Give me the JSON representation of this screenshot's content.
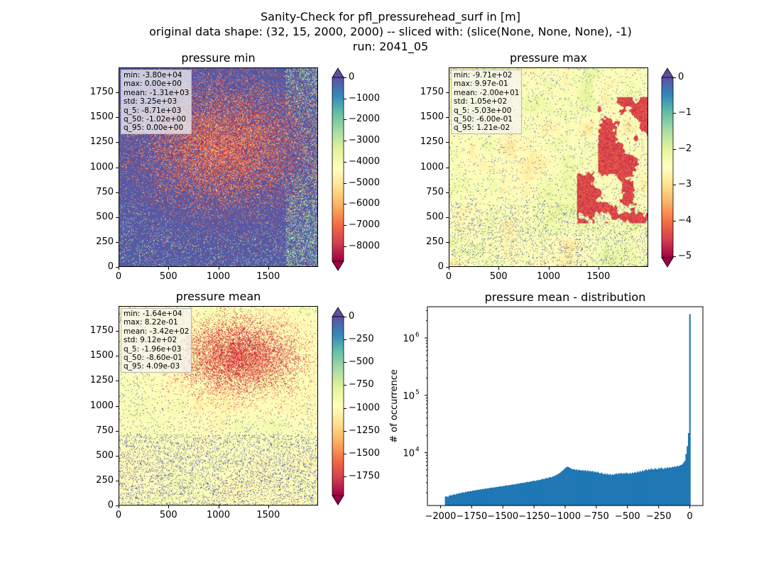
{
  "suptitle": {
    "line1": "Sanity-Check for pfl_pressurehead_surf in [m]",
    "line2": "original data shape: (32, 15, 2000, 2000) -- sliced with: (slice(None, None, None), -1)",
    "line3": "run: 2041_05"
  },
  "panels": {
    "min": {
      "title": "pressure min",
      "stats": [
        "min: -3.80e+04",
        "max: 0.00e+00",
        "mean: -1.31e+03",
        "std: 3.25e+03",
        "q_5: -8.71e+03",
        "q_50: -1.02e+00",
        "q_95: 0.00e+00"
      ],
      "xticks": [
        "0",
        "500",
        "1000",
        "1500"
      ],
      "yticks": [
        "0",
        "250",
        "500",
        "750",
        "1000",
        "1250",
        "1500",
        "1750"
      ],
      "cbar_ticks": [
        "0",
        "−1000",
        "−2000",
        "−3000",
        "−4000",
        "−5000",
        "−6000",
        "−7000",
        "−8000"
      ],
      "cbar_range": [
        -8710,
        0
      ],
      "cmap": "Spectral"
    },
    "max": {
      "title": "pressure max",
      "stats": [
        "min: -9.71e+02",
        "max: 9.97e-01",
        "mean: -2.00e+01",
        "std: 1.05e+02",
        "q_5: -5.03e+00",
        "q_50: -6.00e-01",
        "q_95: 1.21e-02"
      ],
      "xticks": [
        "0",
        "500",
        "1000",
        "1500"
      ],
      "yticks": [
        "0",
        "250",
        "500",
        "750",
        "1000",
        "1250",
        "1500",
        "1750"
      ],
      "cbar_ticks": [
        "0",
        "−1",
        "−2",
        "−3",
        "−4",
        "−5"
      ],
      "cbar_range": [
        -5.03,
        0
      ],
      "cmap": "Spectral"
    },
    "mean": {
      "title": "pressure mean",
      "stats": [
        "min: -1.64e+04",
        "max: 8.22e-01",
        "mean: -3.42e+02",
        "std: 9.12e+02",
        "q_5: -1.96e+03",
        "q_50: -8.60e-01",
        "q_95: 4.09e-03"
      ],
      "xticks": [
        "0",
        "500",
        "1000",
        "1500"
      ],
      "yticks": [
        "0",
        "250",
        "500",
        "750",
        "1000",
        "1250",
        "1500",
        "1750"
      ],
      "cbar_ticks": [
        "0",
        "−250",
        "−500",
        "−750",
        "−1000",
        "−1250",
        "−1500",
        "−1750"
      ],
      "cbar_range": [
        -1960,
        0
      ],
      "cmap": "Spectral"
    }
  },
  "colors": {
    "bar": "#1f77b4",
    "cmap_low": "#9e0142",
    "cmap_mid": "#ffffbf",
    "cmap_high": "#5e4fa2"
  },
  "chart_data": [
    {
      "type": "heatmap",
      "title": "pressure min",
      "xlim": [
        0,
        2000
      ],
      "ylim": [
        0,
        2000
      ],
      "xticks": [
        0,
        500,
        1000,
        1500
      ],
      "yticks": [
        0,
        250,
        500,
        750,
        1000,
        1250,
        1500,
        1750
      ],
      "colorbar": {
        "min": -8710,
        "max": 0,
        "ticks": [
          0,
          -1000,
          -2000,
          -3000,
          -4000,
          -5000,
          -6000,
          -7000,
          -8000
        ],
        "extend": "both",
        "cmap": "Spectral"
      }
    },
    {
      "type": "heatmap",
      "title": "pressure max",
      "xlim": [
        0,
        2000
      ],
      "ylim": [
        0,
        2000
      ],
      "xticks": [
        0,
        500,
        1000,
        1500
      ],
      "yticks": [
        0,
        250,
        500,
        750,
        1000,
        1250,
        1500,
        1750
      ],
      "colorbar": {
        "min": -5.03,
        "max": 0,
        "ticks": [
          0,
          -1,
          -2,
          -3,
          -4,
          -5
        ],
        "extend": "both",
        "cmap": "Spectral"
      }
    },
    {
      "type": "heatmap",
      "title": "pressure mean",
      "xlim": [
        0,
        2000
      ],
      "ylim": [
        0,
        2000
      ],
      "xticks": [
        0,
        500,
        1000,
        1500
      ],
      "yticks": [
        0,
        250,
        500,
        750,
        1000,
        1250,
        1500,
        1750
      ],
      "colorbar": {
        "min": -1960,
        "max": 0,
        "ticks": [
          0,
          -250,
          -500,
          -750,
          -1000,
          -1250,
          -1500,
          -1750
        ],
        "extend": "both",
        "cmap": "Spectral"
      }
    },
    {
      "type": "bar",
      "title": "pressure mean - distribution",
      "xlabel": "",
      "ylabel": "# of occurrence",
      "yscale": "log",
      "xlim": [
        -2105,
        105
      ],
      "ylim": [
        1200,
        3500000
      ],
      "xticks": [
        -2000,
        -1750,
        -1500,
        -1250,
        -1000,
        -750,
        -500,
        -250,
        0
      ],
      "xtick_labels": [
        "−2000",
        "−1750",
        "−1500",
        "−1250",
        "−1000",
        "−750",
        "−500",
        "−250",
        "0"
      ],
      "yticks": [
        10000,
        100000,
        1000000
      ],
      "ytick_labels": [
        "10",
        "10",
        "10"
      ],
      "ytick_exponents": [
        "4",
        "5",
        "6"
      ],
      "bin_width": 10,
      "bins": [
        {
          "x": -1960,
          "y": 1720
        },
        {
          "x": -1950,
          "y": 1730
        },
        {
          "x": -1940,
          "y": 1690
        },
        {
          "x": -1930,
          "y": 1780
        },
        {
          "x": -1920,
          "y": 1820
        },
        {
          "x": -1910,
          "y": 1790
        },
        {
          "x": -1900,
          "y": 1860
        },
        {
          "x": -1890,
          "y": 1880
        },
        {
          "x": -1880,
          "y": 1850
        },
        {
          "x": -1870,
          "y": 1930
        },
        {
          "x": -1860,
          "y": 1920
        },
        {
          "x": -1850,
          "y": 1980
        },
        {
          "x": -1840,
          "y": 1960
        },
        {
          "x": -1830,
          "y": 2010
        },
        {
          "x": -1820,
          "y": 2040
        },
        {
          "x": -1810,
          "y": 2000
        },
        {
          "x": -1800,
          "y": 2080
        },
        {
          "x": -1790,
          "y": 2060
        },
        {
          "x": -1780,
          "y": 2120
        },
        {
          "x": -1770,
          "y": 2110
        },
        {
          "x": -1760,
          "y": 2150
        },
        {
          "x": -1750,
          "y": 2130
        },
        {
          "x": -1740,
          "y": 2190
        },
        {
          "x": -1730,
          "y": 2180
        },
        {
          "x": -1720,
          "y": 2230
        },
        {
          "x": -1710,
          "y": 2210
        },
        {
          "x": -1700,
          "y": 2270
        },
        {
          "x": -1690,
          "y": 2250
        },
        {
          "x": -1680,
          "y": 2300
        },
        {
          "x": -1670,
          "y": 2280
        },
        {
          "x": -1660,
          "y": 2340
        },
        {
          "x": -1650,
          "y": 2320
        },
        {
          "x": -1640,
          "y": 2380
        },
        {
          "x": -1630,
          "y": 2360
        },
        {
          "x": -1620,
          "y": 2410
        },
        {
          "x": -1610,
          "y": 2390
        },
        {
          "x": -1600,
          "y": 2450
        },
        {
          "x": -1590,
          "y": 2470
        },
        {
          "x": -1580,
          "y": 2440
        },
        {
          "x": -1570,
          "y": 2500
        },
        {
          "x": -1560,
          "y": 2480
        },
        {
          "x": -1550,
          "y": 2540
        },
        {
          "x": -1540,
          "y": 2520
        },
        {
          "x": -1530,
          "y": 2580
        },
        {
          "x": -1520,
          "y": 2600
        },
        {
          "x": -1510,
          "y": 2570
        },
        {
          "x": -1500,
          "y": 2640
        },
        {
          "x": -1490,
          "y": 2620
        },
        {
          "x": -1480,
          "y": 2680
        },
        {
          "x": -1470,
          "y": 2700
        },
        {
          "x": -1460,
          "y": 2660
        },
        {
          "x": -1450,
          "y": 2740
        },
        {
          "x": -1440,
          "y": 2720
        },
        {
          "x": -1430,
          "y": 2780
        },
        {
          "x": -1420,
          "y": 2800
        },
        {
          "x": -1410,
          "y": 2760
        },
        {
          "x": -1400,
          "y": 2850
        },
        {
          "x": -1390,
          "y": 2830
        },
        {
          "x": -1380,
          "y": 2900
        },
        {
          "x": -1370,
          "y": 2880
        },
        {
          "x": -1360,
          "y": 2950
        },
        {
          "x": -1350,
          "y": 2980
        },
        {
          "x": -1340,
          "y": 2940
        },
        {
          "x": -1330,
          "y": 3020
        },
        {
          "x": -1320,
          "y": 3000
        },
        {
          "x": -1310,
          "y": 3080
        },
        {
          "x": -1300,
          "y": 3110
        },
        {
          "x": -1290,
          "y": 3070
        },
        {
          "x": -1280,
          "y": 3160
        },
        {
          "x": -1270,
          "y": 3140
        },
        {
          "x": -1260,
          "y": 3220
        },
        {
          "x": -1250,
          "y": 3250
        },
        {
          "x": -1240,
          "y": 3200
        },
        {
          "x": -1230,
          "y": 3300
        },
        {
          "x": -1220,
          "y": 3280
        },
        {
          "x": -1210,
          "y": 3370
        },
        {
          "x": -1200,
          "y": 3350
        },
        {
          "x": -1190,
          "y": 3450
        },
        {
          "x": -1180,
          "y": 3500
        },
        {
          "x": -1170,
          "y": 3440
        },
        {
          "x": -1160,
          "y": 3560
        },
        {
          "x": -1150,
          "y": 3620
        },
        {
          "x": -1140,
          "y": 3580
        },
        {
          "x": -1130,
          "y": 3700
        },
        {
          "x": -1120,
          "y": 3750
        },
        {
          "x": -1110,
          "y": 3700
        },
        {
          "x": -1100,
          "y": 3850
        },
        {
          "x": -1090,
          "y": 3900
        },
        {
          "x": -1080,
          "y": 4000
        },
        {
          "x": -1070,
          "y": 4100
        },
        {
          "x": -1060,
          "y": 4200
        },
        {
          "x": -1050,
          "y": 4350
        },
        {
          "x": -1040,
          "y": 4500
        },
        {
          "x": -1030,
          "y": 4700
        },
        {
          "x": -1020,
          "y": 4900
        },
        {
          "x": -1010,
          "y": 5100
        },
        {
          "x": -1000,
          "y": 5400
        },
        {
          "x": -990,
          "y": 5600
        },
        {
          "x": -980,
          "y": 5700
        },
        {
          "x": -970,
          "y": 5550
        },
        {
          "x": -960,
          "y": 5400
        },
        {
          "x": -950,
          "y": 5250
        },
        {
          "x": -940,
          "y": 5100
        },
        {
          "x": -930,
          "y": 5200
        },
        {
          "x": -920,
          "y": 5000
        },
        {
          "x": -910,
          "y": 5100
        },
        {
          "x": -900,
          "y": 4900
        },
        {
          "x": -890,
          "y": 5050
        },
        {
          "x": -880,
          "y": 4950
        },
        {
          "x": -870,
          "y": 4850
        },
        {
          "x": -860,
          "y": 5000
        },
        {
          "x": -850,
          "y": 4800
        },
        {
          "x": -840,
          "y": 4950
        },
        {
          "x": -830,
          "y": 4750
        },
        {
          "x": -820,
          "y": 4900
        },
        {
          "x": -810,
          "y": 4700
        },
        {
          "x": -800,
          "y": 4850
        },
        {
          "x": -790,
          "y": 4650
        },
        {
          "x": -780,
          "y": 4800
        },
        {
          "x": -770,
          "y": 4550
        },
        {
          "x": -760,
          "y": 4700
        },
        {
          "x": -750,
          "y": 4500
        },
        {
          "x": -740,
          "y": 4650
        },
        {
          "x": -730,
          "y": 4450
        },
        {
          "x": -720,
          "y": 4350
        },
        {
          "x": -710,
          "y": 4500
        },
        {
          "x": -700,
          "y": 4300
        },
        {
          "x": -690,
          "y": 4200
        },
        {
          "x": -680,
          "y": 4350
        },
        {
          "x": -670,
          "y": 4150
        },
        {
          "x": -660,
          "y": 4300
        },
        {
          "x": -650,
          "y": 4100
        },
        {
          "x": -640,
          "y": 4250
        },
        {
          "x": -630,
          "y": 4050
        },
        {
          "x": -620,
          "y": 4200
        },
        {
          "x": -610,
          "y": 4100
        },
        {
          "x": -600,
          "y": 4250
        },
        {
          "x": -590,
          "y": 4350
        },
        {
          "x": -580,
          "y": 4200
        },
        {
          "x": -570,
          "y": 4400
        },
        {
          "x": -560,
          "y": 4300
        },
        {
          "x": -550,
          "y": 4450
        },
        {
          "x": -540,
          "y": 4250
        },
        {
          "x": -530,
          "y": 4400
        },
        {
          "x": -520,
          "y": 4300
        },
        {
          "x": -510,
          "y": 4500
        },
        {
          "x": -500,
          "y": 4350
        },
        {
          "x": -490,
          "y": 4250
        },
        {
          "x": -480,
          "y": 4450
        },
        {
          "x": -470,
          "y": 4300
        },
        {
          "x": -460,
          "y": 4500
        },
        {
          "x": -450,
          "y": 4400
        },
        {
          "x": -440,
          "y": 4600
        },
        {
          "x": -430,
          "y": 4450
        },
        {
          "x": -420,
          "y": 4700
        },
        {
          "x": -410,
          "y": 4550
        },
        {
          "x": -400,
          "y": 4800
        },
        {
          "x": -390,
          "y": 4650
        },
        {
          "x": -380,
          "y": 4900
        },
        {
          "x": -370,
          "y": 4750
        },
        {
          "x": -360,
          "y": 5000
        },
        {
          "x": -350,
          "y": 5100
        },
        {
          "x": -340,
          "y": 4900
        },
        {
          "x": -330,
          "y": 5200
        },
        {
          "x": -320,
          "y": 5000
        },
        {
          "x": -310,
          "y": 5300
        },
        {
          "x": -300,
          "y": 5150
        },
        {
          "x": -290,
          "y": 5050
        },
        {
          "x": -280,
          "y": 5350
        },
        {
          "x": -270,
          "y": 5200
        },
        {
          "x": -260,
          "y": 5100
        },
        {
          "x": -250,
          "y": 5400
        },
        {
          "x": -240,
          "y": 5250
        },
        {
          "x": -230,
          "y": 5500
        },
        {
          "x": -220,
          "y": 5300
        },
        {
          "x": -210,
          "y": 5150
        },
        {
          "x": -200,
          "y": 5450
        },
        {
          "x": -190,
          "y": 5300
        },
        {
          "x": -180,
          "y": 5550
        },
        {
          "x": -170,
          "y": 5400
        },
        {
          "x": -160,
          "y": 5600
        },
        {
          "x": -150,
          "y": 5450
        },
        {
          "x": -140,
          "y": 5700
        },
        {
          "x": -130,
          "y": 5550
        },
        {
          "x": -120,
          "y": 5800
        },
        {
          "x": -110,
          "y": 5650
        },
        {
          "x": -100,
          "y": 5900
        },
        {
          "x": -90,
          "y": 5800
        },
        {
          "x": -80,
          "y": 6000
        },
        {
          "x": -70,
          "y": 6100
        },
        {
          "x": -60,
          "y": 6300
        },
        {
          "x": -50,
          "y": 6700
        },
        {
          "x": -40,
          "y": 7200
        },
        {
          "x": -30,
          "y": 9500
        },
        {
          "x": -20,
          "y": 13000
        },
        {
          "x": -10,
          "y": 22000
        },
        {
          "x": 0,
          "y": 2600000
        }
      ]
    }
  ]
}
